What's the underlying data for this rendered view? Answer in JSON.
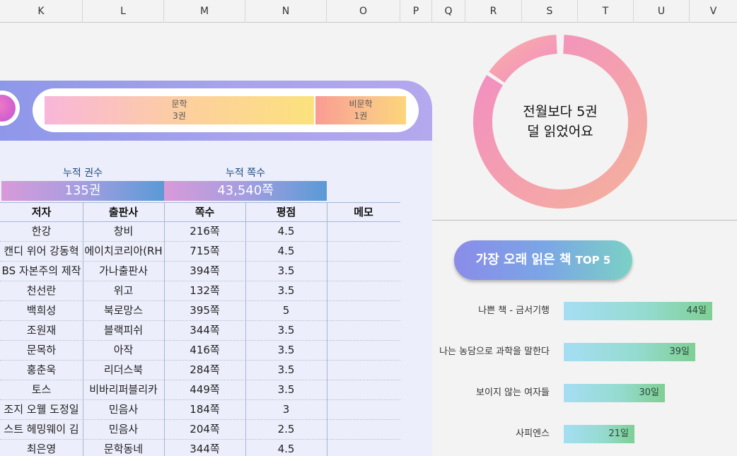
{
  "columns": [
    "K",
    "L",
    "M",
    "N",
    "O",
    "P",
    "Q",
    "R",
    "S",
    "T",
    "U",
    "V"
  ],
  "genres": [
    {
      "name": "문학",
      "count": "3권"
    },
    {
      "name": "비문학",
      "count": "1권"
    }
  ],
  "stats": {
    "books_label": "누적 권수",
    "books_value": "135권",
    "pages_label": "누적 쪽수",
    "pages_value": "43,540쪽"
  },
  "table": {
    "headers": [
      "저자",
      "출판사",
      "쪽수",
      "평점",
      "메모"
    ],
    "rows": [
      [
        "한강",
        "창비",
        "216쪽",
        "4.5",
        ""
      ],
      [
        "캔디 위어  강동혁",
        "에이치코리아(RH",
        "715쪽",
        "4.5",
        ""
      ],
      [
        "BS 자본주의 제작",
        "가나출판사",
        "394쪽",
        "3.5",
        ""
      ],
      [
        "천선란",
        "위고",
        "132쪽",
        "3.5",
        ""
      ],
      [
        "백희성",
        "북로망스",
        "395쪽",
        "5",
        ""
      ],
      [
        "조원재",
        "블랙피쉬",
        "344쪽",
        "3.5",
        ""
      ],
      [
        "문목하",
        "아작",
        "416쪽",
        "3.5",
        ""
      ],
      [
        "홍춘욱",
        "리더스북",
        "284쪽",
        "3.5",
        ""
      ],
      [
        "토스",
        "비바리퍼블리카",
        "449쪽",
        "3.5",
        ""
      ],
      [
        "조지 오웰  도정일",
        "민음사",
        "184쪽",
        "3",
        ""
      ],
      [
        "스트 헤밍웨이  김",
        "민음사",
        "204쪽",
        "2.5",
        ""
      ],
      [
        "최은영",
        "문학동네",
        "344쪽",
        "4.5",
        ""
      ]
    ]
  },
  "donut": {
    "line1": "전월보다 5권",
    "line2": "덜 읽었어요",
    "fraction": 0.84,
    "colors": [
      "#f28ac6",
      "#f5b39a",
      "#f9b3a2"
    ]
  },
  "top5": {
    "title_main": "가장 오래 읽은 책 ",
    "title_tag": "TOP 5",
    "items": [
      {
        "title": "나쁜 책 - 금서기행",
        "label": "44일",
        "days": 44
      },
      {
        "title": "나는 농담으로 과학을 말한다",
        "label": "39일",
        "days": 39
      },
      {
        "title": "보이지 않는 여자들",
        "label": "30일",
        "days": 30
      },
      {
        "title": "사피엔스",
        "label": "21일",
        "days": 21
      }
    ]
  }
}
